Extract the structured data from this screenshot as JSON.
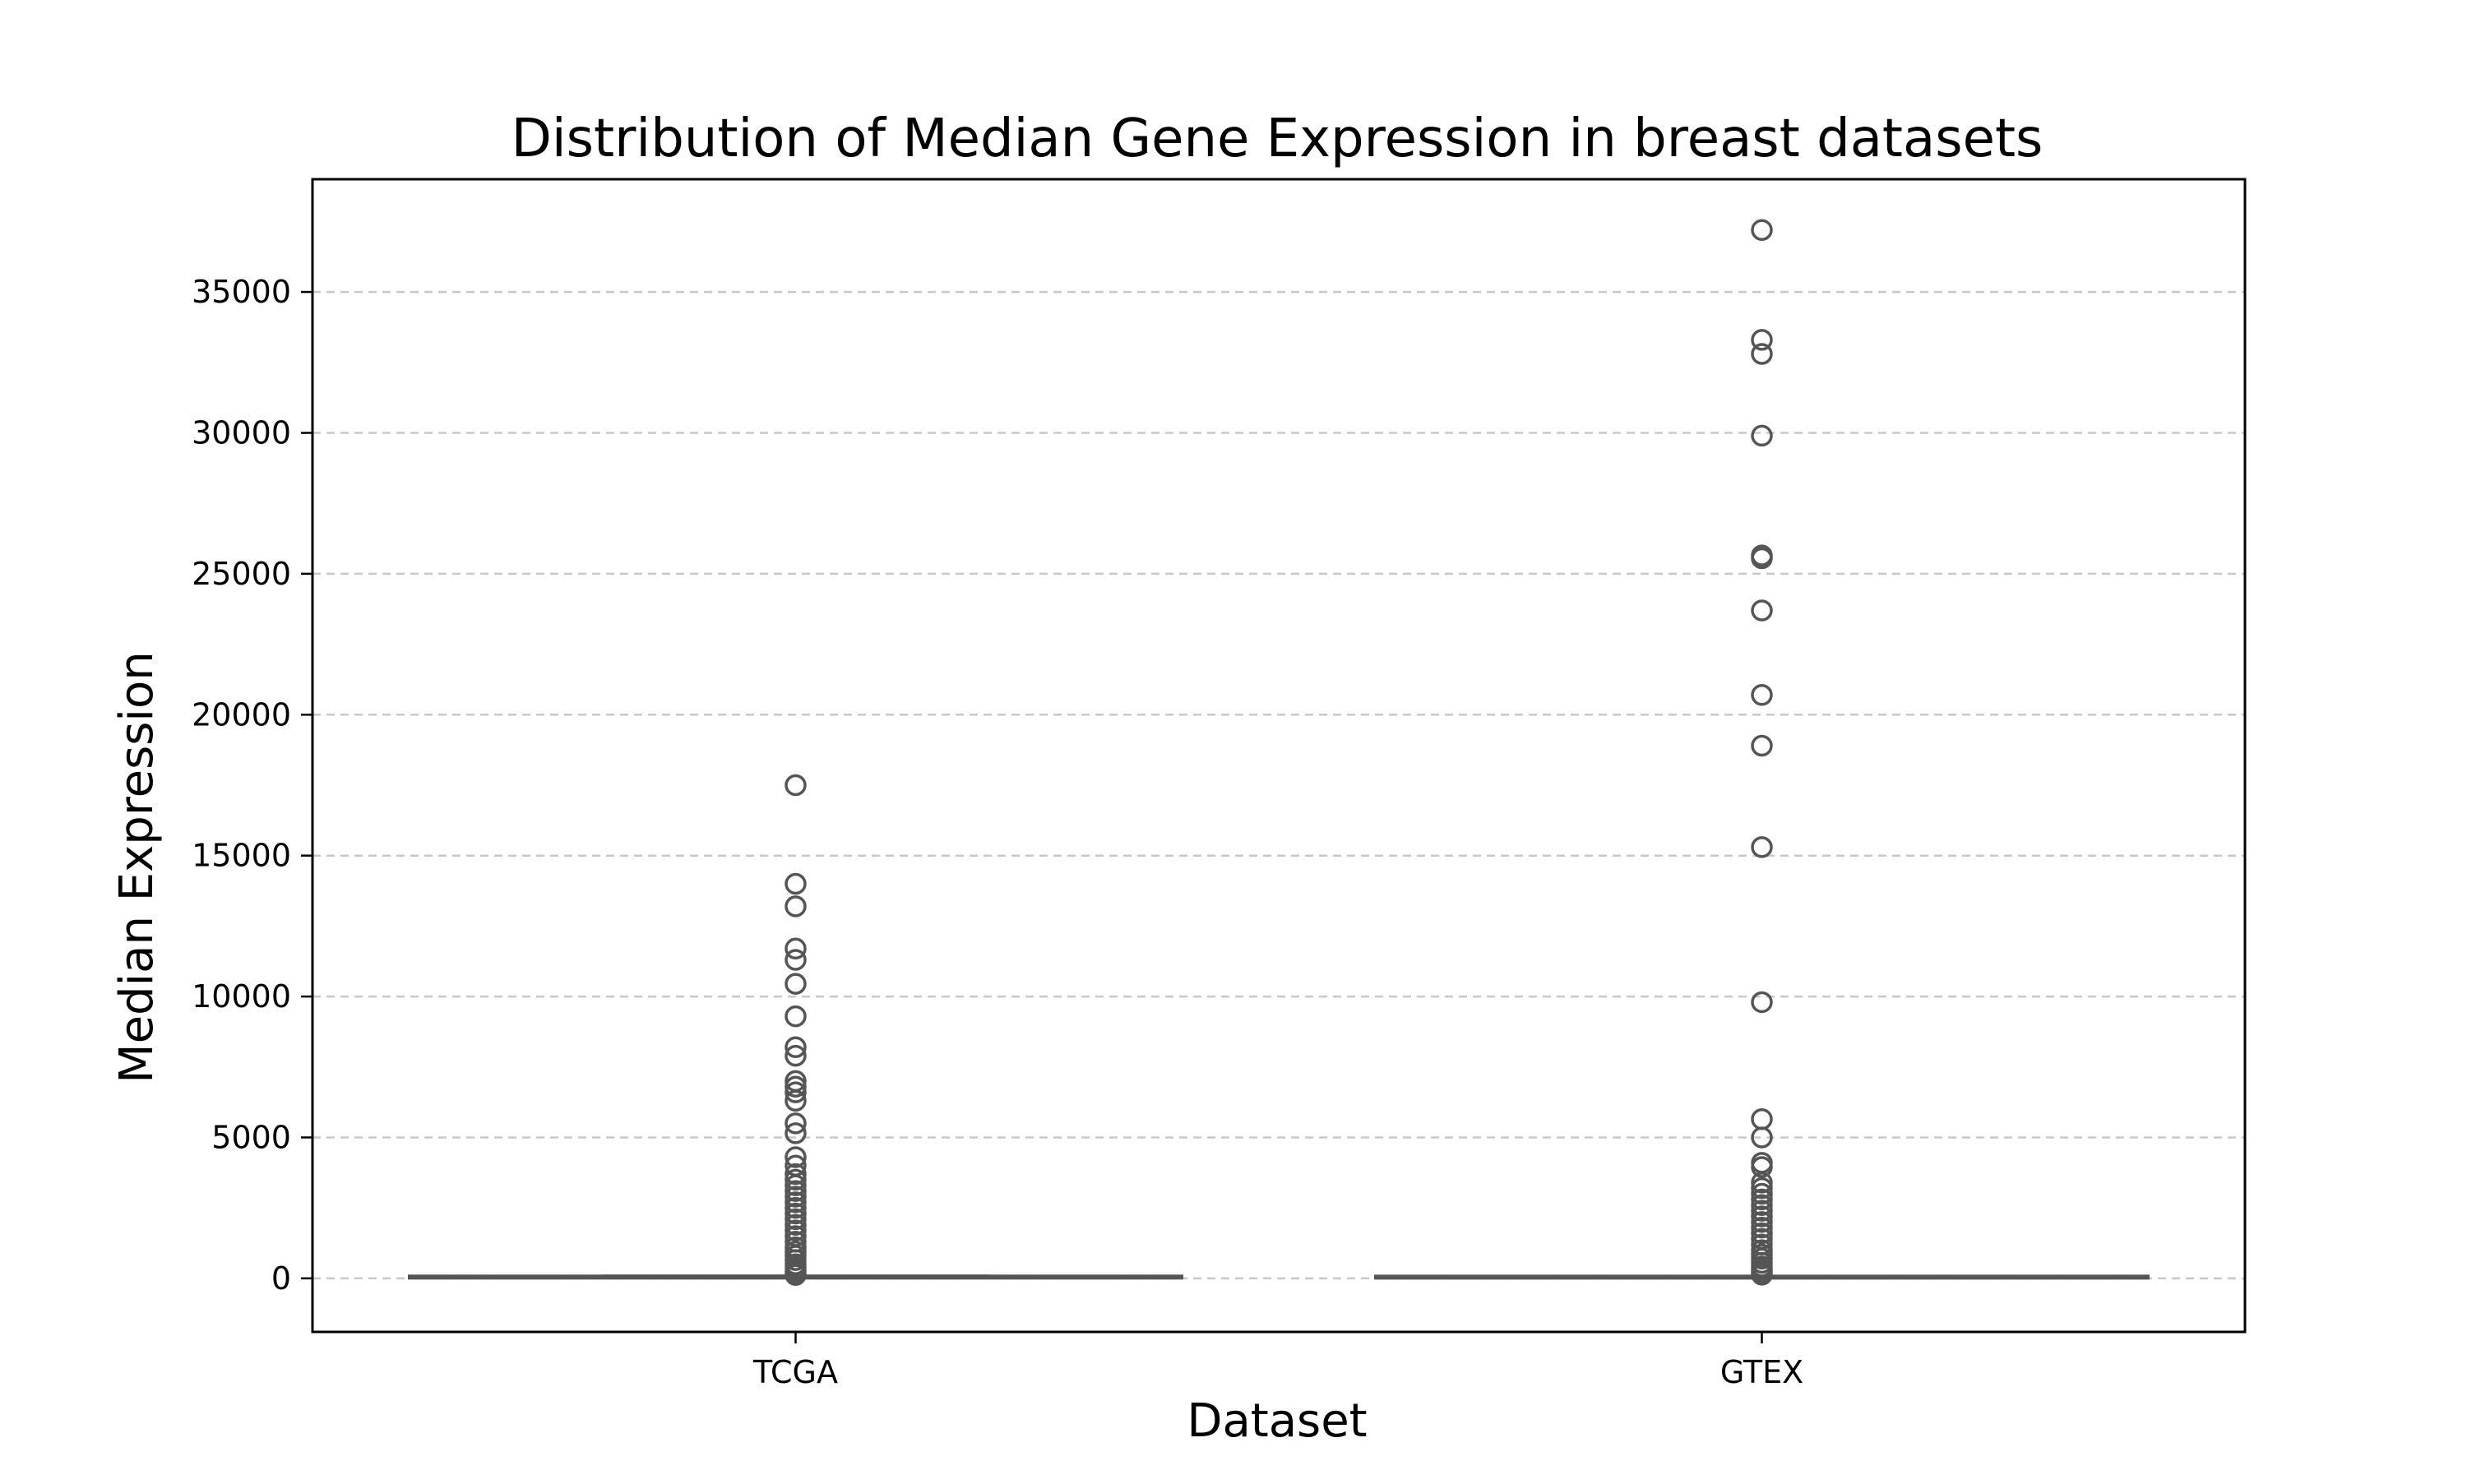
{
  "chart_data": {
    "type": "box",
    "title": "Distribution of Median Gene Expression in breast datasets",
    "xlabel": "Dataset",
    "ylabel": "Median Expression",
    "categories": [
      "TCGA",
      "GTEX"
    ],
    "ylim": [
      -1900,
      39000
    ],
    "yticks": [
      0,
      5000,
      10000,
      15000,
      20000,
      25000,
      30000,
      35000
    ],
    "grid": {
      "y": true,
      "x": false,
      "style": "dashed"
    },
    "colors": {
      "box": "#555555",
      "grid": "#c8c8c8",
      "frame": "#000000"
    },
    "boxes": [
      {
        "name": "TCGA",
        "whisker_low": 0,
        "q1": 2,
        "median": 10,
        "q3": 40,
        "whisker_high": 90,
        "outliers": [
          17500,
          14000,
          13200,
          11700,
          11300,
          10450,
          9300,
          8200,
          7900,
          7000,
          6800,
          6600,
          6300,
          5500,
          5150,
          4300,
          4000,
          3700,
          3500,
          3300,
          3100,
          2900,
          2700,
          2500,
          2300,
          2100,
          1900,
          1700,
          1500,
          1300,
          1100,
          950,
          800,
          650,
          500,
          380,
          270,
          180,
          120
        ]
      },
      {
        "name": "GTEX",
        "whisker_low": 0,
        "q1": 1,
        "median": 8,
        "q3": 35,
        "whisker_high": 80,
        "outliers": [
          37200,
          33300,
          32800,
          29900,
          25650,
          25550,
          23700,
          20700,
          18900,
          15300,
          9800,
          5650,
          5000,
          4100,
          3950,
          3400,
          3200,
          3000,
          2800,
          2600,
          2400,
          2200,
          2000,
          1800,
          1600,
          1400,
          1200,
          1000,
          850,
          700,
          550,
          420,
          300,
          200,
          130
        ]
      }
    ]
  }
}
